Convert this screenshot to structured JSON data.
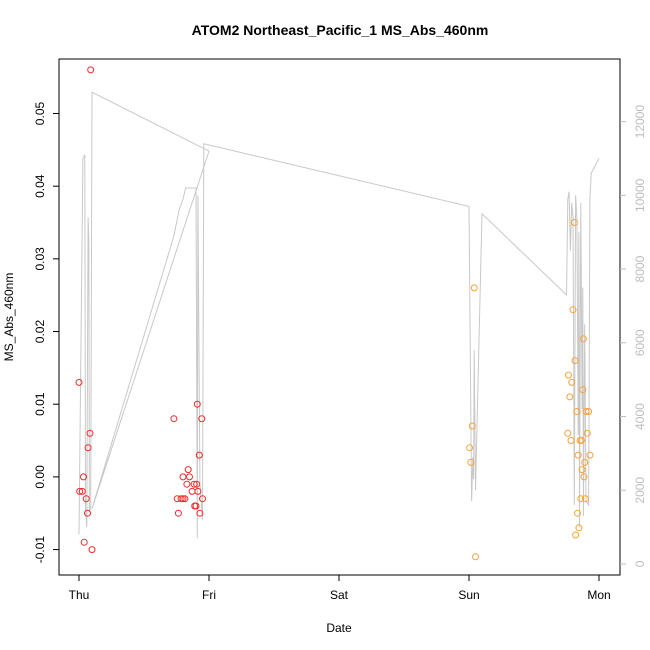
{
  "chart_data": {
    "type": "scatter",
    "title": "ATOM2 Northeast_Pacific_1 MS_Abs_460nm",
    "xlabel": "Date",
    "ylabel": "MS_Abs_460nm",
    "x_ticks": [
      "Thu",
      "Fri",
      "Sat",
      "Sun",
      "Mon"
    ],
    "y_ticks": [
      "-0.01",
      "0.00",
      "0.01",
      "0.02",
      "0.03",
      "0.04",
      "0.05"
    ],
    "y_ticks_values": [
      -0.01,
      0.0,
      0.01,
      0.02,
      0.03,
      0.04,
      0.05
    ],
    "y2_ticks": [
      "0",
      "2000",
      "4000",
      "6000",
      "8000",
      "10000",
      "12000"
    ],
    "y2_ticks_values": [
      0,
      2000,
      4000,
      6000,
      8000,
      10000,
      12000
    ],
    "xlim": [
      0,
      4
    ],
    "ylim": [
      -0.0135,
      0.0575
    ],
    "y2lim": [
      -300,
      13700
    ],
    "colors": {
      "red": "#ef2b2b",
      "orange": "#f7a23c",
      "grey": "#c8c8c8"
    },
    "points": [
      {
        "x": 0.0,
        "y": 0.013,
        "color": "red"
      },
      {
        "x": 0.005,
        "y": -0.002,
        "color": "red"
      },
      {
        "x": 0.025,
        "y": -0.002,
        "color": "red"
      },
      {
        "x": 0.035,
        "y": 0.0,
        "color": "red"
      },
      {
        "x": 0.04,
        "y": -0.009,
        "color": "red"
      },
      {
        "x": 0.055,
        "y": -0.003,
        "color": "red"
      },
      {
        "x": 0.065,
        "y": -0.005,
        "color": "red"
      },
      {
        "x": 0.07,
        "y": 0.004,
        "color": "red"
      },
      {
        "x": 0.085,
        "y": 0.006,
        "color": "red"
      },
      {
        "x": 0.09,
        "y": 0.056,
        "color": "red"
      },
      {
        "x": 0.1,
        "y": -0.01,
        "color": "red"
      },
      {
        "x": 0.73,
        "y": 0.008,
        "color": "red"
      },
      {
        "x": 0.755,
        "y": -0.003,
        "color": "red"
      },
      {
        "x": 0.765,
        "y": -0.005,
        "color": "red"
      },
      {
        "x": 0.785,
        "y": -0.003,
        "color": "red"
      },
      {
        "x": 0.8,
        "y": -0.003,
        "color": "red"
      },
      {
        "x": 0.8,
        "y": 0.0,
        "color": "red"
      },
      {
        "x": 0.815,
        "y": -0.003,
        "color": "red"
      },
      {
        "x": 0.83,
        "y": -0.001,
        "color": "red"
      },
      {
        "x": 0.84,
        "y": 0.001,
        "color": "red"
      },
      {
        "x": 0.85,
        "y": 0.0,
        "color": "red"
      },
      {
        "x": 0.87,
        "y": -0.002,
        "color": "red"
      },
      {
        "x": 0.885,
        "y": -0.001,
        "color": "red"
      },
      {
        "x": 0.89,
        "y": -0.004,
        "color": "red"
      },
      {
        "x": 0.9,
        "y": -0.004,
        "color": "red"
      },
      {
        "x": 0.905,
        "y": -0.001,
        "color": "red"
      },
      {
        "x": 0.91,
        "y": 0.01,
        "color": "red"
      },
      {
        "x": 0.915,
        "y": -0.002,
        "color": "red"
      },
      {
        "x": 0.925,
        "y": 0.003,
        "color": "red"
      },
      {
        "x": 0.93,
        "y": -0.005,
        "color": "red"
      },
      {
        "x": 0.945,
        "y": 0.008,
        "color": "red"
      },
      {
        "x": 0.95,
        "y": -0.003,
        "color": "red"
      },
      {
        "x": 3.005,
        "y": 0.004,
        "color": "orange"
      },
      {
        "x": 3.015,
        "y": 0.002,
        "color": "orange"
      },
      {
        "x": 3.025,
        "y": 0.007,
        "color": "orange"
      },
      {
        "x": 3.04,
        "y": 0.026,
        "color": "orange"
      },
      {
        "x": 3.05,
        "y": -0.011,
        "color": "orange"
      },
      {
        "x": 3.76,
        "y": 0.006,
        "color": "orange"
      },
      {
        "x": 3.765,
        "y": 0.014,
        "color": "orange"
      },
      {
        "x": 3.775,
        "y": 0.011,
        "color": "orange"
      },
      {
        "x": 3.785,
        "y": 0.005,
        "color": "orange"
      },
      {
        "x": 3.79,
        "y": 0.013,
        "color": "orange"
      },
      {
        "x": 3.8,
        "y": 0.023,
        "color": "orange"
      },
      {
        "x": 3.81,
        "y": 0.035,
        "color": "orange"
      },
      {
        "x": 3.815,
        "y": 0.016,
        "color": "orange"
      },
      {
        "x": 3.82,
        "y": -0.008,
        "color": "orange"
      },
      {
        "x": 3.83,
        "y": 0.009,
        "color": "orange"
      },
      {
        "x": 3.835,
        "y": -0.005,
        "color": "orange"
      },
      {
        "x": 3.84,
        "y": 0.003,
        "color": "orange"
      },
      {
        "x": 3.845,
        "y": -0.007,
        "color": "orange"
      },
      {
        "x": 3.855,
        "y": 0.005,
        "color": "orange"
      },
      {
        "x": 3.86,
        "y": -0.003,
        "color": "orange"
      },
      {
        "x": 3.865,
        "y": 0.005,
        "color": "orange"
      },
      {
        "x": 3.87,
        "y": 0.001,
        "color": "orange"
      },
      {
        "x": 3.875,
        "y": 0.012,
        "color": "orange"
      },
      {
        "x": 3.88,
        "y": 0.019,
        "color": "orange"
      },
      {
        "x": 3.885,
        "y": 0.0,
        "color": "orange"
      },
      {
        "x": 3.89,
        "y": 0.002,
        "color": "orange"
      },
      {
        "x": 3.895,
        "y": -0.003,
        "color": "orange"
      },
      {
        "x": 3.9,
        "y": 0.009,
        "color": "orange"
      },
      {
        "x": 3.91,
        "y": 0.006,
        "color": "orange"
      },
      {
        "x": 3.92,
        "y": 0.009,
        "color": "orange"
      },
      {
        "x": 3.93,
        "y": 0.003,
        "color": "orange"
      }
    ],
    "secondary_line": [
      [
        0.0,
        800
      ],
      [
        0.03,
        11000
      ],
      [
        0.045,
        11100
      ],
      [
        0.05,
        1500
      ],
      [
        0.06,
        1000
      ],
      [
        0.07,
        9400
      ],
      [
        0.075,
        8800
      ],
      [
        0.08,
        1400
      ],
      [
        0.09,
        1500
      ],
      [
        0.1,
        12800
      ],
      [
        1.0,
        11200
      ],
      [
        0.1,
        1500
      ],
      [
        0.73,
        8900
      ],
      [
        0.77,
        9600
      ],
      [
        0.8,
        9900
      ],
      [
        0.82,
        10200
      ],
      [
        0.9,
        10200
      ],
      [
        0.91,
        700
      ],
      [
        0.915,
        10000
      ],
      [
        0.93,
        2200
      ],
      [
        0.95,
        1200
      ],
      [
        0.96,
        11400
      ],
      [
        3.0,
        9700
      ],
      [
        3.02,
        1700
      ],
      [
        3.03,
        2900
      ],
      [
        3.035,
        2300
      ],
      [
        3.04,
        5800
      ],
      [
        3.05,
        2000
      ],
      [
        3.1,
        9500
      ],
      [
        3.75,
        7300
      ],
      [
        3.76,
        9900
      ],
      [
        3.77,
        10100
      ],
      [
        3.78,
        8500
      ],
      [
        3.79,
        9800
      ],
      [
        3.8,
        9400
      ],
      [
        3.81,
        1600
      ],
      [
        3.82,
        10000
      ],
      [
        3.83,
        9400
      ],
      [
        3.84,
        3500
      ],
      [
        3.845,
        9000
      ],
      [
        3.85,
        1000
      ],
      [
        3.86,
        9800
      ],
      [
        3.87,
        4200
      ],
      [
        3.875,
        7500
      ],
      [
        3.88,
        1300
      ],
      [
        3.89,
        6500
      ],
      [
        3.9,
        1700
      ],
      [
        3.92,
        1600
      ],
      [
        3.93,
        9900
      ],
      [
        3.94,
        10600
      ],
      [
        4.0,
        11000
      ]
    ]
  }
}
